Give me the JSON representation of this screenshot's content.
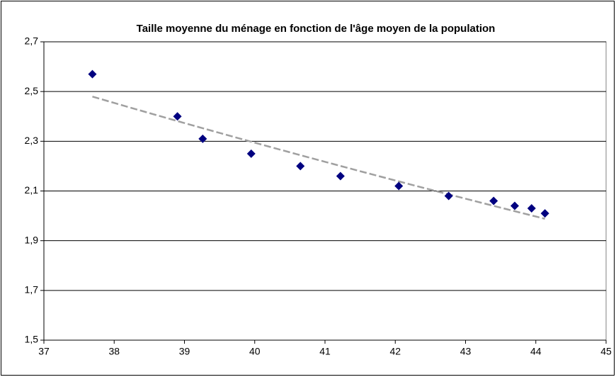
{
  "chart_data": {
    "type": "scatter",
    "title": "Taille moyenne du ménage en fonction de l'âge moyen de la population",
    "series": [
      {
        "color": "#000080",
        "x": [
          37.69,
          38.9,
          39.26,
          39.95,
          40.65,
          41.22,
          42.05,
          42.76,
          43.4,
          43.7,
          43.94,
          44.13
        ],
        "values": [
          2.57,
          2.4,
          2.31,
          2.25,
          2.2,
          2.16,
          2.12,
          2.08,
          2.06,
          2.04,
          2.03,
          2.01
        ]
      }
    ],
    "trendline": {
      "kind": "log",
      "color": "#a0a0a0"
    },
    "xlim": [
      37,
      45
    ],
    "xticks": [
      37,
      38,
      39,
      40,
      41,
      42,
      43,
      44,
      45
    ],
    "ylim": [
      1.5,
      2.7
    ],
    "yticks": [
      {
        "value": 1.5,
        "label": "1,5"
      },
      {
        "value": 1.7,
        "label": "1,7"
      },
      {
        "value": 1.9,
        "label": "1,9"
      },
      {
        "value": 2.1,
        "label": "2,1"
      },
      {
        "value": 2.3,
        "label": "2,3"
      },
      {
        "value": 2.5,
        "label": "2,5"
      },
      {
        "value": 2.7,
        "label": "2,7"
      }
    ],
    "grid": true
  }
}
